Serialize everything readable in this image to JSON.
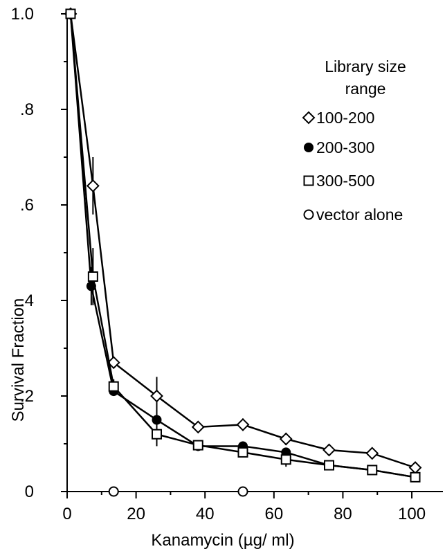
{
  "chart_data": {
    "type": "line",
    "title": "",
    "xlabel": "Kanamycin   (µg/ ml)",
    "ylabel": "Survival   Fraction",
    "xlim": [
      0,
      102
    ],
    "ylim": [
      0,
      1.0
    ],
    "x_ticks": [
      0,
      20,
      40,
      60,
      80,
      100
    ],
    "x_tick_labels": [
      "0",
      "20",
      "40",
      "60",
      "80",
      "100"
    ],
    "y_ticks": [
      0,
      0.2,
      0.4,
      0.6,
      0.8,
      1.0
    ],
    "y_tick_labels": [
      "0",
      ".2",
      ".4",
      ".6",
      ".8",
      "1.0"
    ],
    "legend": {
      "title": [
        "Library size",
        "range"
      ],
      "placement": "right"
    },
    "series": [
      {
        "name": "100-200",
        "marker": "diamond-open",
        "x": [
          1,
          7.5,
          13.5,
          26,
          38,
          51,
          63.5,
          76,
          88.5,
          101
        ],
        "y": [
          1.0,
          0.64,
          0.27,
          0.2,
          0.135,
          0.14,
          0.11,
          0.087,
          0.08,
          0.05
        ],
        "err": [
          0,
          0.06,
          0.012,
          0.04,
          0.008,
          0.013,
          0.013,
          0.012,
          0.01,
          0.01
        ]
      },
      {
        "name": "200-300",
        "marker": "circle-filled",
        "x": [
          1,
          7,
          13.5,
          26,
          38,
          51,
          63.5,
          76,
          88.5,
          101
        ],
        "y": [
          1.0,
          0.43,
          0.21,
          0.15,
          0.095,
          0.095,
          0.082,
          0.055,
          0.045,
          0.03
        ],
        "err": [
          0,
          0.04,
          0.01,
          0.012,
          0.01,
          0.01,
          0.01,
          0.008,
          0.005,
          0.005
        ]
      },
      {
        "name": "300-500",
        "marker": "square-open",
        "x": [
          1,
          7.5,
          13.5,
          26,
          38,
          51,
          63.5,
          76,
          88.5,
          101
        ],
        "y": [
          1.0,
          0.45,
          0.22,
          0.12,
          0.097,
          0.082,
          0.067,
          0.055,
          0.045,
          0.03
        ],
        "err": [
          0,
          0.06,
          0.015,
          0.025,
          0.01,
          0.01,
          0.015,
          0.008,
          0.006,
          0.005
        ]
      },
      {
        "name": "vector alone",
        "marker": "circle-open",
        "x": [
          13.5,
          51
        ],
        "y": [
          0,
          0
        ],
        "err": [
          0,
          0
        ]
      }
    ]
  }
}
